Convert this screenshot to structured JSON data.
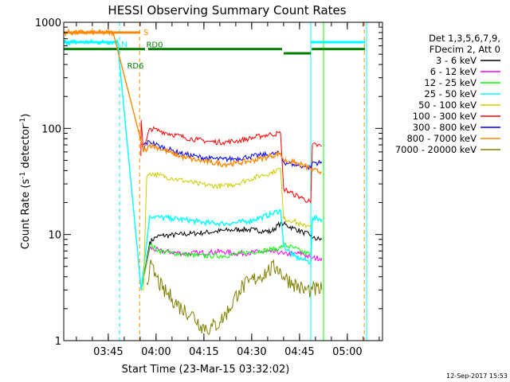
{
  "chart_data": {
    "type": "line",
    "title": "HESSI Observing Summary Count Rates",
    "xlabel": "Start Time (23-Mar-15 03:32:02)",
    "ylabel_main": "Count Rate (s",
    "ylabel_sup1": "-1",
    "ylabel_mid": " detector",
    "ylabel_sup2": "-1",
    "ylabel_end": ")",
    "y_scale": "log",
    "ylim": [
      1,
      1000
    ],
    "xlim_min": [
      0,
      100
    ],
    "y_ticks": [
      {
        "value": 1,
        "label": "1"
      },
      {
        "value": 10,
        "label": "10"
      },
      {
        "value": 100,
        "label": "100"
      },
      {
        "value": 1000,
        "label": "1000"
      }
    ],
    "x_ticks": [
      {
        "value": 13.97,
        "label": "03:45"
      },
      {
        "value": 28.97,
        "label": "04:00"
      },
      {
        "value": 43.97,
        "label": "04:15"
      },
      {
        "value": 58.97,
        "label": "04:30"
      },
      {
        "value": 73.97,
        "label": "04:45"
      },
      {
        "value": 88.97,
        "label": "05:00"
      }
    ],
    "legend_position": "right",
    "legend_header": [
      "Det 1,3,5,6,7,9,",
      "FDecim 2, Att 0"
    ],
    "series": [
      {
        "name": "3 - 6 keV",
        "color": "#000000",
        "x": [
          24.3,
          27,
          29,
          31,
          33,
          36,
          40,
          44,
          48,
          52,
          56,
          60,
          63,
          65,
          68,
          69,
          72,
          75,
          77.5,
          78,
          81
        ],
        "y": [
          3.0,
          8.5,
          9.5,
          9.8,
          9.8,
          10.0,
          10.2,
          10.4,
          10.7,
          11.0,
          11.2,
          11.0,
          10.8,
          10.6,
          12.8,
          12.5,
          11.5,
          10.5,
          9.8,
          9.2,
          9.0
        ]
      },
      {
        "name": "6 - 12 keV",
        "color": "#ff00ff",
        "x": [
          24.3,
          27,
          30,
          34,
          38,
          42,
          46,
          50,
          54,
          58,
          62,
          65,
          68,
          69,
          72,
          75,
          77.5,
          78,
          81
        ],
        "y": [
          3.0,
          7.5,
          7.0,
          6.8,
          6.6,
          6.7,
          6.8,
          6.9,
          6.6,
          6.7,
          6.9,
          6.8,
          6.8,
          6.5,
          6.6,
          6.6,
          6.0,
          6.0,
          6.0
        ]
      },
      {
        "name": "12 - 25 keV",
        "color": "#00ff00",
        "x": [
          24.3,
          27,
          30,
          34,
          38,
          42,
          46,
          50,
          54,
          58,
          62,
          65,
          68,
          69,
          72,
          75,
          77.5
        ],
        "y": [
          3.0,
          8.0,
          7.0,
          6.7,
          6.5,
          6.3,
          6.3,
          6.3,
          6.5,
          6.8,
          7.0,
          7.2,
          7.5,
          8.0,
          7.5,
          6.8,
          6.5
        ]
      },
      {
        "name": "25 - 50 keV",
        "color": "#00ffff",
        "x": [
          0,
          17,
          17.1,
          24.3,
          27,
          30,
          34,
          38,
          42,
          46,
          50,
          54,
          58,
          62,
          65,
          68,
          69,
          72,
          75,
          77.5,
          78,
          81
        ],
        "y": [
          650,
          650,
          560,
          3.0,
          15,
          14.5,
          14.2,
          13.8,
          13.2,
          12.8,
          12.7,
          12.9,
          13.4,
          14.5,
          15.5,
          17.0,
          7.8,
          6.3,
          5.8,
          5.5,
          14.2,
          14.0
        ]
      },
      {
        "name": "50 - 100 keV",
        "color": "#cccc00",
        "x": [
          24.3,
          25,
          26,
          27,
          30,
          34,
          38,
          42,
          46,
          50,
          54,
          58,
          62,
          65,
          68,
          69,
          72,
          75,
          77.5
        ],
        "y": [
          3.0,
          3.0,
          34,
          38,
          36,
          34,
          32,
          30,
          29,
          28.5,
          30,
          33,
          36,
          38,
          42,
          14.0,
          13.5,
          12.0,
          12.5
        ]
      },
      {
        "name": "100 - 300 keV",
        "color": "#ff0000",
        "x": [
          24.2,
          24.3,
          25,
          27,
          30,
          34,
          38,
          42,
          46,
          50,
          54,
          58,
          62,
          65,
          68,
          69,
          72,
          75,
          77.5,
          78,
          81
        ],
        "y": [
          55,
          120,
          60,
          100,
          95,
          88,
          82,
          78,
          75,
          74,
          76,
          80,
          85,
          88,
          90,
          27,
          24,
          22,
          20,
          70,
          68
        ]
      },
      {
        "name": "300 - 800 keV",
        "color": "#0000ff",
        "x": [
          25,
          27,
          30,
          34,
          38,
          42,
          46,
          50,
          54,
          58,
          62,
          65,
          68,
          69,
          72,
          75,
          77.5,
          78,
          81
        ],
        "y": [
          70,
          75,
          68,
          62,
          57,
          54,
          52,
          51,
          52,
          54,
          56,
          57,
          58,
          48,
          46,
          44,
          42,
          48,
          47
        ]
      },
      {
        "name": "800 - 7000 keV",
        "color": "#ff8800",
        "x": [
          0,
          15.5,
          24.3,
          25,
          27,
          30,
          34,
          38,
          42,
          46,
          50,
          54,
          58,
          62,
          65,
          68,
          69,
          72,
          75,
          77.5,
          78,
          81
        ],
        "y": [
          800,
          800,
          75,
          60,
          70,
          65,
          58,
          53,
          50,
          48,
          46,
          47,
          49,
          52,
          55,
          58,
          50,
          48,
          45,
          42,
          40,
          39
        ]
      },
      {
        "name": "7000 - 20000 keV",
        "color": "#808000",
        "x": [
          26,
          27,
          29,
          31,
          34,
          37,
          40,
          43,
          46,
          49,
          52,
          55,
          58,
          61,
          64,
          67,
          69,
          72,
          75,
          77.5,
          78,
          81
        ],
        "y": [
          3.5,
          5.0,
          4.0,
          3.0,
          2.5,
          2.0,
          1.8,
          1.4,
          1.3,
          1.5,
          2.0,
          3.0,
          3.5,
          4.0,
          4.5,
          5.0,
          4.0,
          3.5,
          3.0,
          3.0,
          3.0,
          3.0
        ]
      }
    ],
    "flags": [
      {
        "label": "RD6",
        "color": "#008000",
        "segments": [
          [
            0,
            25.5
          ],
          [
            26.5,
            68.5
          ]
        ],
        "value": 560
      },
      {
        "label": "RD0",
        "color": "#008000",
        "segments": [
          [
            69,
            77.5
          ]
        ],
        "value": 510
      },
      {
        "label": "",
        "color": "#008000",
        "segments": [
          [
            77.8,
            94.5
          ]
        ],
        "value": 560
      },
      {
        "label": "N",
        "color": "#00ffff",
        "segments": [
          [
            0,
            17.1
          ],
          [
            77.6,
            94.5
          ]
        ],
        "value": 650
      },
      {
        "label": "S",
        "color": "#ff8800",
        "segments": [
          [
            0,
            24.0
          ]
        ],
        "value": 800
      }
    ],
    "vlines": [
      {
        "x": 17.5,
        "color": "#00ffff",
        "dashed": true
      },
      {
        "x": 23.8,
        "color": "#ff8800",
        "dashed": true
      },
      {
        "x": 77.5,
        "color": "#00ffff",
        "dashed": false
      },
      {
        "x": 81.5,
        "color": "#00ff00",
        "dashed": false
      },
      {
        "x": 94.3,
        "color": "#ff8800",
        "dashed": true
      },
      {
        "x": 95.0,
        "color": "#00ffff",
        "dashed": false
      }
    ]
  },
  "footer": "12-Sep-2017 15:53"
}
